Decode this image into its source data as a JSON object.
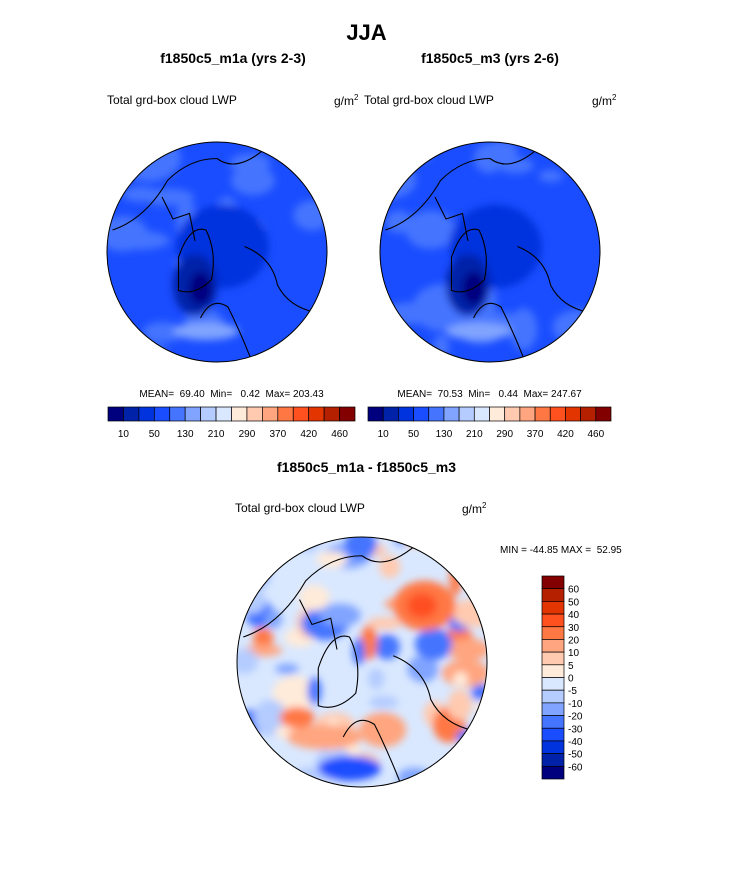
{
  "title": "JJA",
  "panels": [
    {
      "title": "f1850c5_m1a (yrs 2-3)",
      "label": "Total grd-box cloud LWP",
      "units": "g/m",
      "units_sup": "2",
      "stats": "MEAN=  69.40  Min=   0.42  Max= 203.43"
    },
    {
      "title": "f1850c5_m3 (yrs 2-6)",
      "label": "Total grd-box cloud LWP",
      "units": "g/m",
      "units_sup": "2",
      "stats": "MEAN=  70.53  Min=   0.44  Max= 247.67"
    }
  ],
  "diff": {
    "title": "f1850c5_m1a - f1850c5_m3",
    "label": "Total grd-box cloud LWP",
    "units": "g/m",
    "units_sup": "2",
    "stats": "MIN = -44.85 MAX =  52.95"
  },
  "chart_data": {
    "type": "heatmap",
    "projection": "north-polar-stereographic",
    "colors": [
      "#00007f",
      "#0022a8",
      "#0033dd",
      "#1a4dff",
      "#4574ff",
      "#80a4ff",
      "#b4ccff",
      "#d9e8ff",
      "#ffebd9",
      "#ffcab0",
      "#ffa57f",
      "#ff7844",
      "#ff5020",
      "#e23500",
      "#b52100",
      "#820000"
    ],
    "main_colorbar_labels": [
      "10",
      "50",
      "130",
      "210",
      "290",
      "370",
      "420",
      "460"
    ],
    "diff_colorbar_labels": [
      "60",
      "50",
      "40",
      "30",
      "20",
      "10",
      "5",
      "0",
      "-5",
      "-10",
      "-20",
      "-30",
      "-40",
      "-50",
      "-60"
    ]
  }
}
